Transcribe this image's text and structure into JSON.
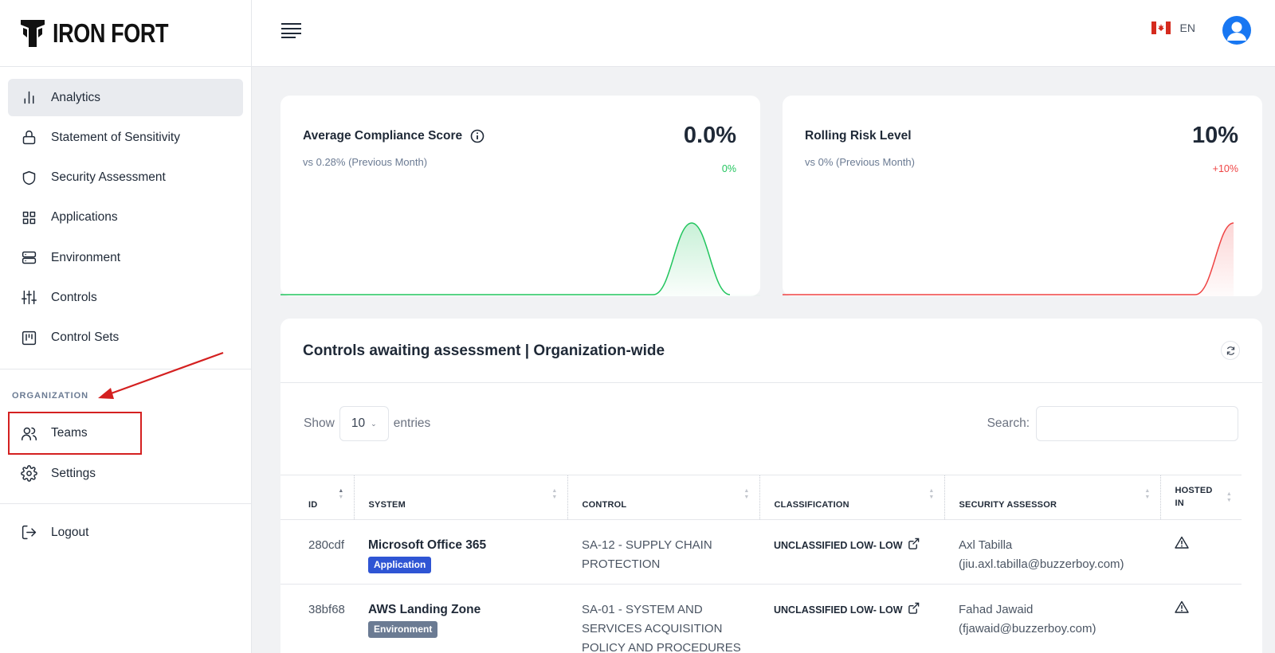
{
  "brand": {
    "name": "IRON FORT"
  },
  "sidebar": {
    "items": [
      {
        "label": "Analytics",
        "icon": "bar-chart-icon",
        "active": true
      },
      {
        "label": "Statement of Sensitivity",
        "icon": "lock-icon"
      },
      {
        "label": "Security Assessment",
        "icon": "shield-icon"
      },
      {
        "label": "Applications",
        "icon": "grid-icon"
      },
      {
        "label": "Environment",
        "icon": "server-icon"
      },
      {
        "label": "Controls",
        "icon": "sliders-icon"
      },
      {
        "label": "Control Sets",
        "icon": "kanban-icon"
      }
    ],
    "section_label": "ORGANIZATION",
    "org_items": [
      {
        "label": "Teams",
        "icon": "users-icon"
      },
      {
        "label": "Settings",
        "icon": "gear-icon"
      }
    ],
    "logout_label": "Logout"
  },
  "header": {
    "language": "EN"
  },
  "kpi": {
    "compliance": {
      "title": "Average Compliance Score",
      "subtitle": "vs 0.28% (Previous Month)",
      "value": "0.0%",
      "delta": "0%",
      "color": "#22c55e"
    },
    "risk": {
      "title": "Rolling Risk Level",
      "subtitle": "vs 0% (Previous Month)",
      "value": "10%",
      "delta": "+10%",
      "color": "#ef4444"
    }
  },
  "table_card": {
    "title": "Controls awaiting assessment | Organization-wide",
    "show_label": "Show",
    "page_size": "10",
    "entries_label": "entries",
    "search_label": "Search:",
    "search_value": "",
    "columns": [
      "ID",
      "SYSTEM",
      "CONTROL",
      "CLASSIFICATION",
      "SECURITY ASSESSOR",
      "HOSTED IN"
    ],
    "rows": [
      {
        "id": "280cdf",
        "system": "Microsoft Office 365",
        "badge": "Application",
        "badge_color": "#2f55d4",
        "control": "SA-12 - SUPPLY CHAIN PROTECTION",
        "classification": "UNCLASSIFIED LOW- LOW",
        "assessor_name": "Axl Tabilla",
        "assessor_email": "(jiu.axl.tabilla@buzzerboy.com)"
      },
      {
        "id": "38bf68",
        "system": "AWS Landing Zone",
        "badge": "Environment",
        "badge_color": "#6b7b93",
        "control": "SA-01 - SYSTEM AND SERVICES ACQUISITION POLICY AND PROCEDURES",
        "classification": "UNCLASSIFIED LOW- LOW",
        "assessor_name": "Fahad Jawaid",
        "assessor_email": "(fjawaid@buzzerboy.com)"
      }
    ]
  }
}
